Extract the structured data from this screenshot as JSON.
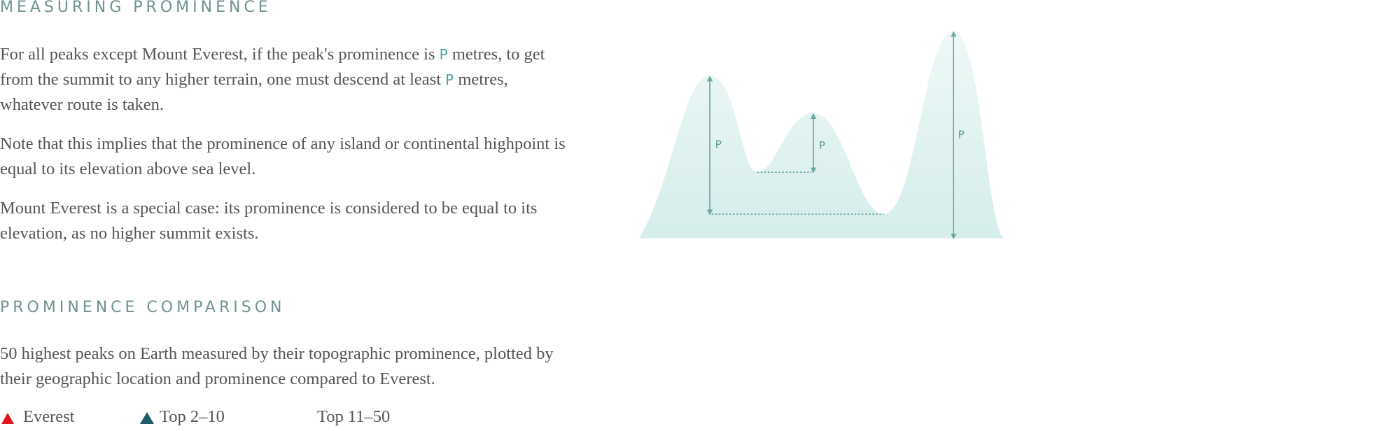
{
  "sections": [
    {
      "heading": "MEASURING PROMINENCE",
      "paragraphs": [
        {
          "parts": [
            "For all peaks except Mount Everest, if the peak's prominence is ",
            "P",
            " metres, to get from the summit to any higher terrain, one must descend at least ",
            "P",
            " metres, whatever route is taken."
          ]
        },
        {
          "parts": [
            "Note that this implies that the prominence of any island or continental highpoint is equal to its elevation above sea level."
          ]
        },
        {
          "parts": [
            "Mount Everest is a special case: its prominence is considered to be equal to its elevation, as no higher summit exists."
          ]
        }
      ]
    },
    {
      "heading": "PROMINENCE COMPARISON",
      "paragraphs": [
        {
          "parts": [
            "50 highest peaks on Earth measured by their topographic prominence, plotted by their geographic location and prominence compared to Everest."
          ]
        }
      ]
    }
  ],
  "diagram": {
    "labels": [
      "P",
      "P",
      "P"
    ]
  },
  "legend": [
    "Everest",
    "Top 2–10",
    "Top 11–50"
  ]
}
